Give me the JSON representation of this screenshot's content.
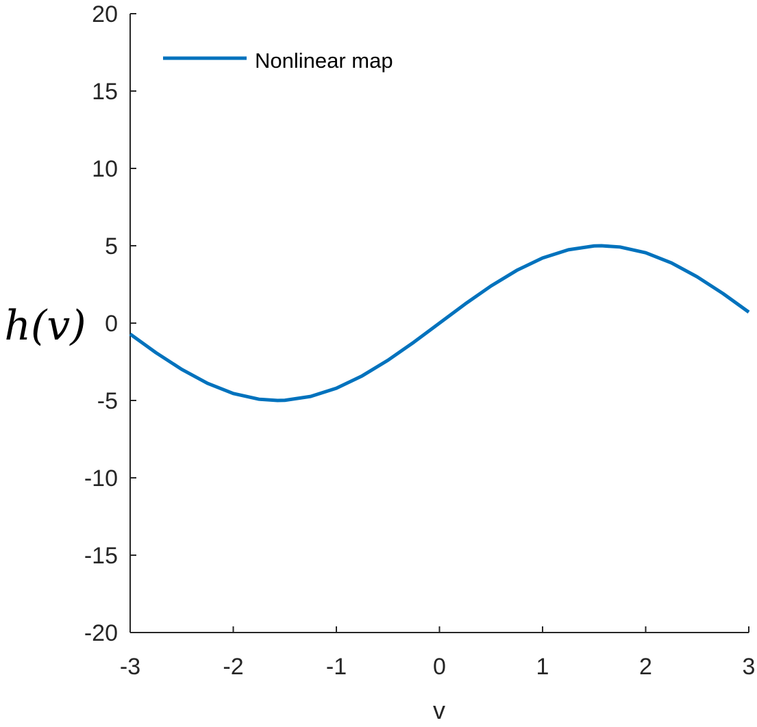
{
  "chart_data": {
    "type": "line",
    "xlabel": "v",
    "ylabel": "h(v)",
    "xlim": [
      -3,
      3
    ],
    "ylim": [
      -20,
      20
    ],
    "x_ticks": [
      -3,
      -2,
      -1,
      0,
      1,
      2,
      3
    ],
    "y_ticks": [
      -20,
      -15,
      -10,
      -5,
      0,
      5,
      10,
      15,
      20
    ],
    "grid": false,
    "legend": {
      "position": "top-left",
      "entries": [
        "Nonlinear map"
      ]
    },
    "series": [
      {
        "name": "Nonlinear map",
        "color": "#0072BD",
        "x": [
          -3.0,
          -2.75,
          -2.5,
          -2.25,
          -2.0,
          -1.75,
          -1.5708,
          -1.5,
          -1.25,
          -1.0,
          -0.75,
          -0.5,
          -0.25,
          0.0,
          0.25,
          0.5,
          0.75,
          1.0,
          1.25,
          1.5,
          1.5708,
          1.75,
          2.0,
          2.25,
          2.5,
          2.75,
          3.0
        ],
        "y": [
          -0.71,
          -1.91,
          -2.99,
          -3.89,
          -4.55,
          -4.92,
          -5.0,
          -4.99,
          -4.74,
          -4.21,
          -3.41,
          -2.4,
          -1.24,
          0.0,
          1.24,
          2.4,
          3.41,
          4.21,
          4.74,
          4.99,
          5.0,
          4.92,
          4.55,
          3.89,
          2.99,
          1.91,
          0.71
        ]
      }
    ]
  }
}
